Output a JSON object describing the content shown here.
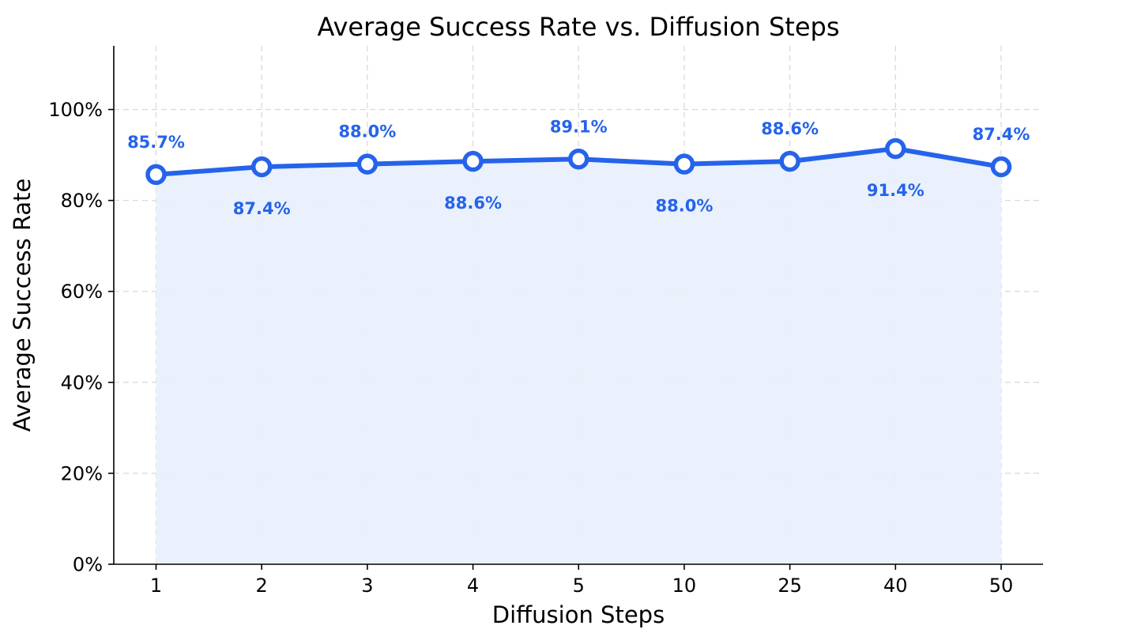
{
  "chart_data": {
    "type": "line",
    "title": "Average Success Rate vs. Diffusion Steps",
    "xlabel": "Diffusion Steps",
    "ylabel": "Average Success Rate",
    "categories": [
      "1",
      "2",
      "3",
      "4",
      "5",
      "10",
      "25",
      "40",
      "50"
    ],
    "series": [
      {
        "values": [
          85.7,
          87.4,
          88.0,
          88.6,
          89.1,
          88.0,
          88.6,
          91.4,
          87.4
        ],
        "data_labels": [
          "85.7%",
          "87.4%",
          "88.0%",
          "88.6%",
          "89.1%",
          "88.0%",
          "88.6%",
          "91.4%",
          "87.4%"
        ],
        "label_positions": [
          "above",
          "below",
          "above",
          "below",
          "above",
          "below",
          "above",
          "below",
          "above"
        ]
      }
    ],
    "ylim": [
      0,
      114
    ],
    "yticks": [
      0,
      20,
      40,
      60,
      80,
      100
    ],
    "ytick_labels": [
      "0%",
      "20%",
      "40%",
      "60%",
      "80%",
      "100%"
    ],
    "grid": true,
    "area_fill": true,
    "colors": {
      "line": "#2563eb",
      "marker_fill": "#ffffff",
      "area": "#e8effc",
      "label": "#2563eb"
    }
  }
}
